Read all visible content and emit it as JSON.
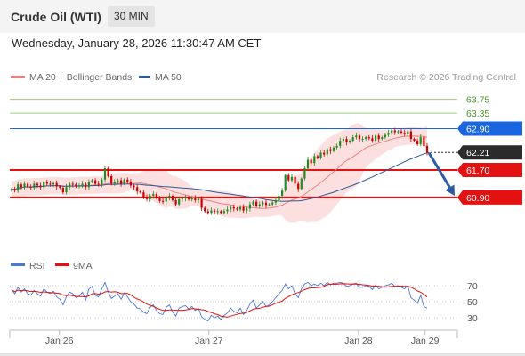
{
  "header": {
    "title": "Crude Oil (WTI)",
    "timeframe": "30 MIN",
    "datetime": "Wednesday, January 28, 2026 11:30:47 AM CET"
  },
  "legend": {
    "ma20": "MA 20 + Bollinger Bands",
    "ma50": "MA 50",
    "credit": "Research © 2026 Trading Central",
    "rsi": "RSI",
    "ma9": "9MA"
  },
  "colors": {
    "bullish": "#228b22",
    "bearish": "#cc0000",
    "pivot": "#1a66e0",
    "support": "#e31111",
    "resistance_line": "#9ccc7c",
    "resistance_text": "#4a9a2a",
    "current": "#2b2b2b",
    "ma20": "#f08080",
    "ma50": "#2c5a9a",
    "band_fill": "#fbd4d4",
    "arrow": "#2d5aa0"
  },
  "chart_data": [
    {
      "type": "candlestick",
      "title": "Crude Oil (WTI)",
      "timeframe": "30 MIN",
      "ylim": [
        59.4,
        64.05
      ],
      "x_ticks": [
        "Jan 26",
        "Jan 27",
        "Jan 28",
        "Jan 29"
      ],
      "levels": [
        {
          "label": "63.75",
          "value": 63.75,
          "role": "resistance"
        },
        {
          "label": "63.35",
          "value": 63.35,
          "role": "resistance"
        },
        {
          "label": "62.90",
          "value": 62.9,
          "role": "pivot"
        },
        {
          "label": "62.21",
          "value": 62.21,
          "role": "current"
        },
        {
          "label": "61.70",
          "value": 61.7,
          "role": "support"
        },
        {
          "label": "60.90",
          "value": 60.9,
          "role": "support"
        }
      ],
      "forecast_arrow": {
        "from": 62.2,
        "to": 60.95,
        "direction": "down"
      },
      "series": [
        {
          "name": "Price",
          "close": [
            61.15,
            61.1,
            61.28,
            61.2,
            61.3,
            61.22,
            61.18,
            61.3,
            61.25,
            61.2,
            61.35,
            61.3,
            61.28,
            61.32,
            61.22,
            61.18,
            61.05,
            61.2,
            61.3,
            61.28,
            61.22,
            61.25,
            61.3,
            61.2,
            61.35,
            61.4,
            61.3,
            61.28,
            61.42,
            61.75,
            61.52,
            61.3,
            61.35,
            61.4,
            61.3,
            61.42,
            61.35,
            61.25,
            61.2,
            61.08,
            61.05,
            60.9,
            60.85,
            60.95,
            61.0,
            60.88,
            60.8,
            60.78,
            60.9,
            60.95,
            60.82,
            60.7,
            60.85,
            60.88,
            60.9,
            60.84,
            60.88,
            60.82,
            60.86,
            60.6,
            60.5,
            60.45,
            60.52,
            60.48,
            60.5,
            60.45,
            60.5,
            60.55,
            60.62,
            60.58,
            60.55,
            60.62,
            60.52,
            60.58,
            60.7,
            60.78,
            60.65,
            60.7,
            60.75,
            60.68,
            60.7,
            60.75,
            60.82,
            60.95,
            61.1,
            61.55,
            61.4,
            61.5,
            61.3,
            61.15,
            61.45,
            61.75,
            62.0,
            61.9,
            62.1,
            62.05,
            62.2,
            62.15,
            62.3,
            62.25,
            62.35,
            62.4,
            62.55,
            62.6,
            62.5,
            62.55,
            62.65,
            62.7,
            62.6,
            62.6,
            62.65,
            62.62,
            62.55,
            62.7,
            62.6,
            62.65,
            62.72,
            62.78,
            62.85,
            62.8,
            62.82,
            62.78,
            62.75,
            62.82,
            62.6,
            62.55,
            62.45,
            62.65,
            62.4,
            62.21
          ]
        },
        {
          "name": "MA 20"
        },
        {
          "name": "MA 50"
        }
      ]
    },
    {
      "type": "line",
      "title": "RSI",
      "ylim": [
        20,
        80
      ],
      "y_ticks": [
        70,
        50,
        30
      ],
      "series": [
        {
          "name": "RSI",
          "values": [
            65,
            60,
            68,
            62,
            66,
            60,
            58,
            64,
            60,
            57,
            66,
            62,
            60,
            63,
            56,
            53,
            46,
            56,
            62,
            60,
            55,
            57,
            62,
            52,
            66,
            69,
            58,
            56,
            66,
            74,
            62,
            54,
            57,
            60,
            53,
            61,
            56,
            50,
            47,
            42,
            41,
            37,
            35,
            43,
            46,
            39,
            35,
            34,
            43,
            46,
            37,
            32,
            42,
            44,
            45,
            41,
            44,
            39,
            42,
            31,
            28,
            26,
            33,
            30,
            32,
            28,
            33,
            36,
            42,
            38,
            36,
            42,
            34,
            39,
            47,
            52,
            42,
            46,
            50,
            44,
            46,
            50,
            55,
            60,
            64,
            72,
            66,
            70,
            60,
            55,
            66,
            72,
            74,
            70,
            72,
            70,
            73,
            70,
            74,
            71,
            73,
            73,
            74,
            73,
            69,
            70,
            72,
            73,
            68,
            68,
            70,
            69,
            65,
            71,
            66,
            68,
            70,
            71,
            73,
            69,
            70,
            68,
            66,
            70,
            55,
            52,
            48,
            58,
            44,
            42
          ]
        },
        {
          "name": "9MA"
        }
      ]
    }
  ]
}
